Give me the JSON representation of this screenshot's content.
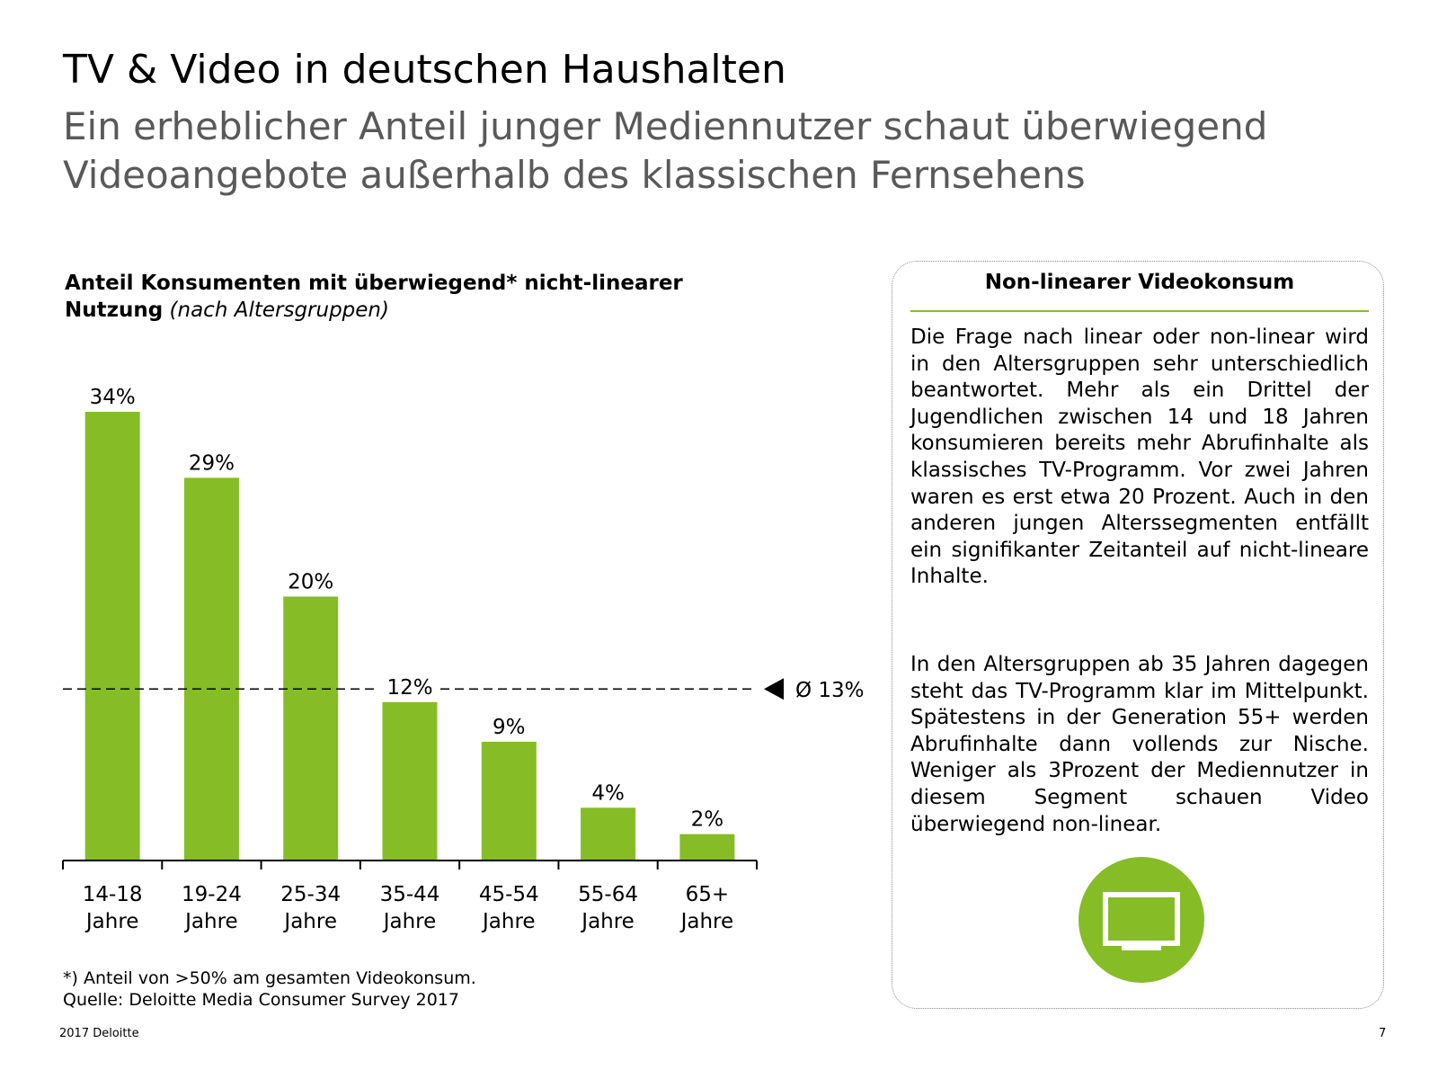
{
  "header": {
    "title": "TV & Video in deutschen Haushalten",
    "subtitle": "Ein erheblicher Anteil junger Mediennutzer schaut überwiegend Videoangebote außerhalb des klassischen Fernsehens"
  },
  "chart_title": {
    "bold": "Anteil Konsumenten mit überwiegend* nicht-linearer Nutzung",
    "italic": "(nach Altersgruppen)"
  },
  "chart_data": {
    "type": "bar",
    "title": "Anteil Konsumenten mit überwiegend* nicht-linearer Nutzung (nach Altersgruppen)",
    "categories": [
      [
        "14-18",
        "Jahre"
      ],
      [
        "19-24",
        "Jahre"
      ],
      [
        "25-34",
        "Jahre"
      ],
      [
        "35-44",
        "Jahre"
      ],
      [
        "45-54",
        "Jahre"
      ],
      [
        "55-64",
        "Jahre"
      ],
      [
        "65+",
        "Jahre"
      ]
    ],
    "values": [
      34,
      29,
      20,
      12,
      9,
      4,
      2
    ],
    "value_labels": [
      "34%",
      "29%",
      "20%",
      "12%",
      "9%",
      "4%",
      "2%"
    ],
    "average": 13,
    "average_label": "Ø 13%",
    "ylim": [
      0,
      34
    ],
    "grid": false,
    "bar_color": "#86bc25"
  },
  "footnote": {
    "line1": "*) Anteil von >50% am gesamten Videokonsum.",
    "line2": "Quelle: Deloitte Media Consumer Survey 2017"
  },
  "footer": {
    "left": "2017 Deloitte",
    "page_number": "7"
  },
  "panel": {
    "title": "Non-linearer Videokonsum",
    "paragraph1": "Die Frage nach linear oder non-linear wird in den Altersgruppen sehr unterschiedlich beantwortet. Mehr als ein Drittel der Jugendlichen zwischen 14 und 18 Jahren konsumieren bereits mehr Abrufinhalte als klassisches TV-Programm. Vor zwei Jahren waren es erst etwa 20 Prozent. Auch in den anderen jungen Alterssegmenten entfällt ein signifikanter Zeitanteil auf nicht-lineare Inhalte.",
    "paragraph2": "In den Altersgruppen ab 35 Jahren dagegen steht das TV-Programm klar im Mittelpunkt. Spätestens in der Generation 55+ werden Abrufinhalte dann vollends zur Nische. Weniger als 3Prozent der Mediennutzer in diesem Segment schauen Video überwiegend non-linear.",
    "icon": "tv-icon"
  },
  "colors": {
    "accent": "#86bc25",
    "subtitle_gray": "#595959"
  }
}
